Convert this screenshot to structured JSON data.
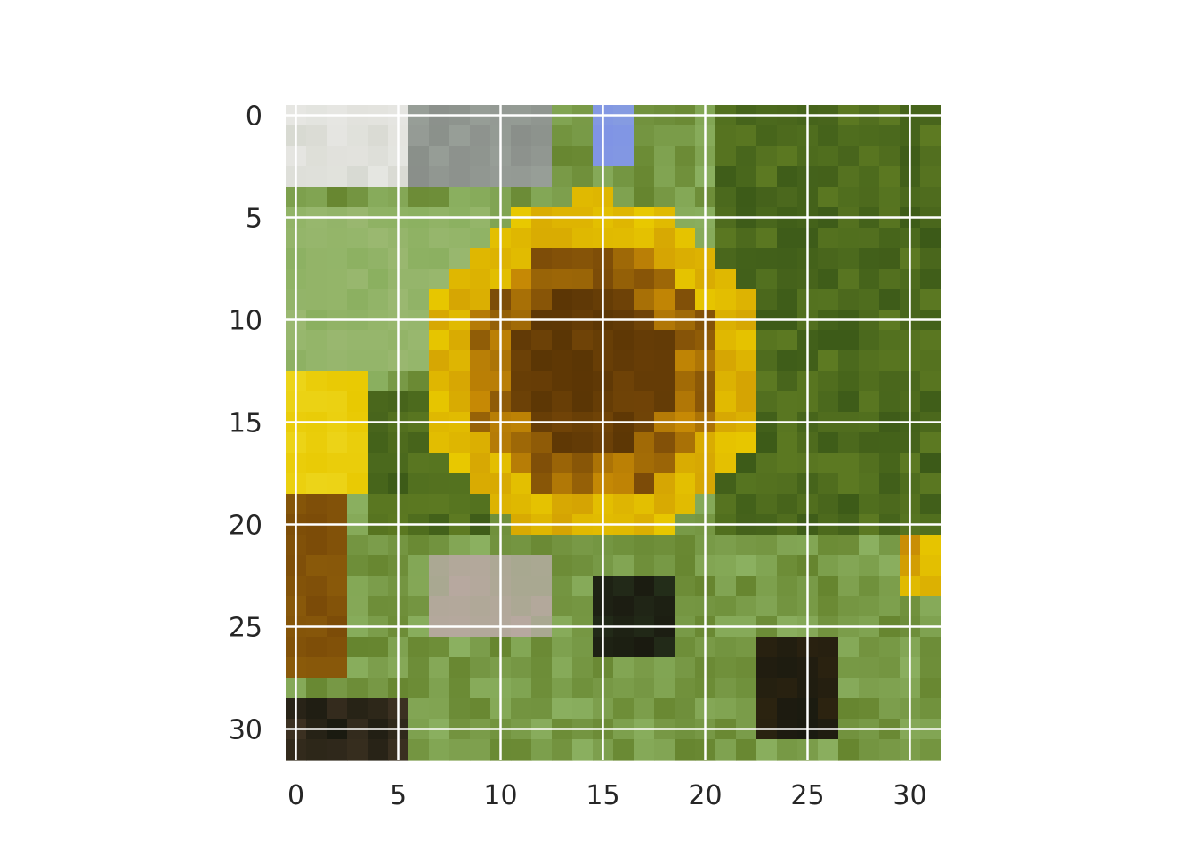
{
  "image": {
    "description_icon": "sunflower-pixel-image",
    "grid_size": [
      32,
      32
    ],
    "grid": true,
    "grid_color": "#ffffff",
    "palette": {
      "sky": "#7f93e6",
      "white": "#e6e6e2",
      "grey": "#8a8f8a",
      "green": "#8bb060",
      "darkgreen": "#3c5a18",
      "olive": "#5d7a22",
      "yellow": "#e8c800",
      "orange": "#c78a05",
      "brown": "#7a4a08",
      "darkbrown": "#5a3505",
      "black": "#1a1a10",
      "pale": "#a8a890"
    }
  },
  "axes": {
    "x_ticks": [
      "0",
      "5",
      "10",
      "15",
      "20",
      "25",
      "30"
    ],
    "y_ticks": [
      "0",
      "5",
      "10",
      "15",
      "20",
      "25",
      "30"
    ],
    "x_range": [
      -0.5,
      31.5
    ],
    "y_range": [
      -0.5,
      31.5
    ]
  }
}
